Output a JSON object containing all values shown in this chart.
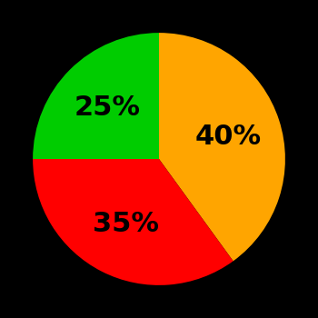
{
  "slices": [
    40,
    35,
    25
  ],
  "colors": [
    "#FFA500",
    "#FF0000",
    "#00CC00"
  ],
  "labels": [
    "40%",
    "35%",
    "25%"
  ],
  "background_color": "#000000",
  "text_color": "#000000",
  "startangle": 90,
  "font_size": 22,
  "font_weight": "bold",
  "label_r": 0.58
}
